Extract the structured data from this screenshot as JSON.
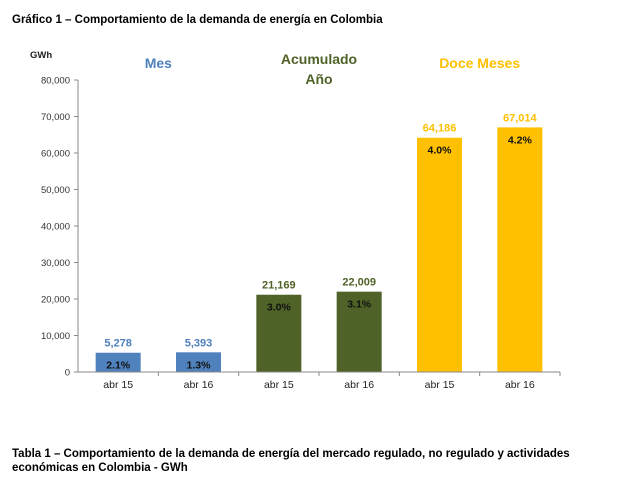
{
  "title": "Gráfico 1 – Comportamiento de la demanda de energía en Colombia",
  "caption": "Tabla 1 – Comportamiento de la demanda de energía del mercado regulado, no regulado y actividades económicas en Colombia - GWh",
  "chart_data": {
    "type": "bar",
    "ylabel": "GWh",
    "ylim": [
      0,
      80000
    ],
    "yticks": [
      0,
      10000,
      20000,
      30000,
      40000,
      50000,
      60000,
      70000,
      80000
    ],
    "ytick_labels": [
      "0",
      "10,000",
      "20,000",
      "30,000",
      "40,000",
      "50,000",
      "60,000",
      "70,000",
      "80,000"
    ],
    "grid": false,
    "groups": [
      {
        "name_lines": [
          "Mes"
        ],
        "color": "#4f81bd",
        "label_color": "#4f81bd"
      },
      {
        "name_lines": [
          "Acumulado",
          "Año"
        ],
        "color": "#4f6228",
        "label_color": "#4f6228"
      },
      {
        "name_lines": [
          "Doce Meses"
        ],
        "color": "#ffc000",
        "label_color": "#ffc000"
      }
    ],
    "categories": [
      "abr 15",
      "abr 16",
      "abr 15",
      "abr 16",
      "abr 15",
      "abr 16"
    ],
    "values": [
      5278,
      5393,
      21169,
      22009,
      64186,
      67014
    ],
    "value_labels": [
      "5,278",
      "5,393",
      "21,169",
      "22,009",
      "64,186",
      "67,014"
    ],
    "growth_labels": [
      "2.1%",
      "1.3%",
      "3.0%",
      "3.1%",
      "4.0%",
      "4.2%"
    ],
    "bar_group": [
      0,
      0,
      1,
      1,
      2,
      2
    ]
  }
}
